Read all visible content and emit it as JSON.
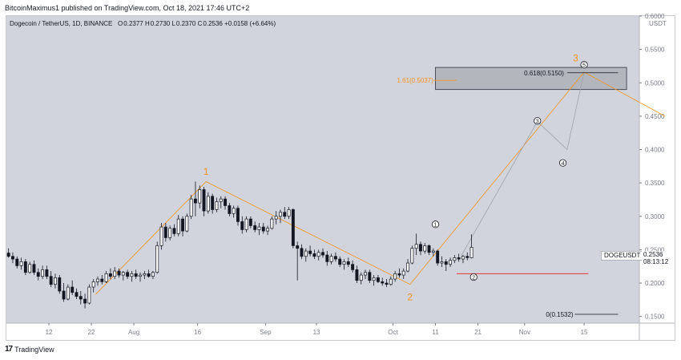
{
  "header": {
    "published_text": "BitcoinMaximus1 published on TradingView.com, Oct 18, 2021 17:46 UTC+2"
  },
  "legend": {
    "symbol_text": "Dogecoin / TetherUS, 1D, BINANCE",
    "o_label": "O",
    "o_value": "0.2377",
    "h_label": "H",
    "h_value": "0.2730",
    "l_label": "L",
    "l_value": "0.2370",
    "c_label": "C",
    "c_value": "0.2536",
    "change": "+0.0158 (+6.64%)"
  },
  "badges": {
    "symbol": "DOGEUSDT",
    "last_price": "0.2536",
    "countdown": "08:13:12"
  },
  "footer": {
    "brand": "TradingView",
    "logo_text": "17"
  },
  "colors": {
    "plot_bg": "#d1d4dc",
    "candle": "#131722",
    "orange": "#f7931a",
    "grey_path": "#9ea2ab",
    "red_line": "#e53935",
    "box_fill": "#a9acb3"
  },
  "chart_data": {
    "type": "candlestick",
    "title": "Dogecoin / TetherUS, 1D, BINANCE",
    "ylabel": "USDT",
    "ylim": [
      0.14,
      0.6
    ],
    "y_ticks": [
      "0.6000",
      "0.5500",
      "0.5000",
      "0.4500",
      "0.4000",
      "0.3500",
      "0.3000",
      "0.2500",
      "0.2000",
      "0.1500"
    ],
    "y_tick_values": [
      0.6,
      0.55,
      0.5,
      0.45,
      0.4,
      0.35,
      0.3,
      0.25,
      0.2,
      0.15
    ],
    "x_range_days": [
      0,
      149
    ],
    "x_ticks": [
      {
        "label": "12",
        "day": 10
      },
      {
        "label": "22",
        "day": 20
      },
      {
        "label": "Aug",
        "day": 30
      },
      {
        "label": "16",
        "day": 45
      },
      {
        "label": "Sep",
        "day": 61
      },
      {
        "label": "13",
        "day": 73
      },
      {
        "label": "Oct",
        "day": 91
      },
      {
        "label": "11",
        "day": 101
      },
      {
        "label": "21",
        "day": 111
      },
      {
        "label": "Nov",
        "day": 122
      },
      {
        "label": "15",
        "day": 136
      }
    ],
    "ohlc": [
      [
        0.245,
        0.252,
        0.238,
        0.24
      ],
      [
        0.24,
        0.246,
        0.23,
        0.236
      ],
      [
        0.236,
        0.24,
        0.222,
        0.226
      ],
      [
        0.226,
        0.238,
        0.22,
        0.232
      ],
      [
        0.232,
        0.236,
        0.212,
        0.216
      ],
      [
        0.216,
        0.232,
        0.214,
        0.228
      ],
      [
        0.228,
        0.234,
        0.212,
        0.216
      ],
      [
        0.216,
        0.222,
        0.204,
        0.21
      ],
      [
        0.21,
        0.226,
        0.206,
        0.22
      ],
      [
        0.22,
        0.226,
        0.206,
        0.21
      ],
      [
        0.21,
        0.218,
        0.194,
        0.198
      ],
      [
        0.198,
        0.214,
        0.192,
        0.208
      ],
      [
        0.208,
        0.212,
        0.184,
        0.188
      ],
      [
        0.188,
        0.2,
        0.172,
        0.176
      ],
      [
        0.176,
        0.198,
        0.174,
        0.194
      ],
      [
        0.194,
        0.204,
        0.182,
        0.186
      ],
      [
        0.186,
        0.192,
        0.176,
        0.18
      ],
      [
        0.18,
        0.188,
        0.168,
        0.176
      ],
      [
        0.176,
        0.184,
        0.162,
        0.17
      ],
      [
        0.17,
        0.198,
        0.168,
        0.194
      ],
      [
        0.194,
        0.206,
        0.186,
        0.202
      ],
      [
        0.202,
        0.21,
        0.196,
        0.206
      ],
      [
        0.206,
        0.212,
        0.198,
        0.202
      ],
      [
        0.202,
        0.218,
        0.2,
        0.214
      ],
      [
        0.214,
        0.222,
        0.206,
        0.21
      ],
      [
        0.21,
        0.224,
        0.206,
        0.218
      ],
      [
        0.218,
        0.222,
        0.208,
        0.212
      ],
      [
        0.212,
        0.218,
        0.204,
        0.216
      ],
      [
        0.216,
        0.22,
        0.206,
        0.21
      ],
      [
        0.21,
        0.218,
        0.202,
        0.214
      ],
      [
        0.214,
        0.22,
        0.206,
        0.21
      ],
      [
        0.21,
        0.216,
        0.202,
        0.212
      ],
      [
        0.212,
        0.218,
        0.206,
        0.214
      ],
      [
        0.214,
        0.22,
        0.208,
        0.21
      ],
      [
        0.21,
        0.218,
        0.206,
        0.216
      ],
      [
        0.216,
        0.262,
        0.214,
        0.256
      ],
      [
        0.256,
        0.29,
        0.25,
        0.284
      ],
      [
        0.284,
        0.29,
        0.262,
        0.268
      ],
      [
        0.268,
        0.286,
        0.264,
        0.282
      ],
      [
        0.282,
        0.288,
        0.27,
        0.274
      ],
      [
        0.274,
        0.302,
        0.27,
        0.296
      ],
      [
        0.296,
        0.3,
        0.27,
        0.278
      ],
      [
        0.278,
        0.304,
        0.276,
        0.3
      ],
      [
        0.3,
        0.332,
        0.296,
        0.326
      ],
      [
        0.326,
        0.352,
        0.3,
        0.32
      ],
      [
        0.32,
        0.346,
        0.312,
        0.34
      ],
      [
        0.34,
        0.344,
        0.3,
        0.308
      ],
      [
        0.308,
        0.336,
        0.304,
        0.33
      ],
      [
        0.33,
        0.334,
        0.304,
        0.31
      ],
      [
        0.31,
        0.328,
        0.306,
        0.322
      ],
      [
        0.322,
        0.33,
        0.312,
        0.326
      ],
      [
        0.326,
        0.33,
        0.31,
        0.316
      ],
      [
        0.316,
        0.32,
        0.3,
        0.304
      ],
      [
        0.304,
        0.316,
        0.298,
        0.312
      ],
      [
        0.312,
        0.316,
        0.286,
        0.292
      ],
      [
        0.292,
        0.3,
        0.274,
        0.28
      ],
      [
        0.28,
        0.3,
        0.276,
        0.296
      ],
      [
        0.296,
        0.3,
        0.282,
        0.286
      ],
      [
        0.286,
        0.292,
        0.276,
        0.28
      ],
      [
        0.28,
        0.29,
        0.272,
        0.284
      ],
      [
        0.284,
        0.29,
        0.274,
        0.278
      ],
      [
        0.278,
        0.286,
        0.272,
        0.282
      ],
      [
        0.282,
        0.3,
        0.28,
        0.296
      ],
      [
        0.296,
        0.308,
        0.288,
        0.3
      ],
      [
        0.3,
        0.31,
        0.29,
        0.306
      ],
      [
        0.306,
        0.314,
        0.296,
        0.3
      ],
      [
        0.3,
        0.314,
        0.296,
        0.31
      ],
      [
        0.31,
        0.312,
        0.252,
        0.256
      ],
      [
        0.256,
        0.262,
        0.204,
        0.252
      ],
      [
        0.252,
        0.258,
        0.236,
        0.24
      ],
      [
        0.24,
        0.252,
        0.232,
        0.248
      ],
      [
        0.248,
        0.256,
        0.24,
        0.244
      ],
      [
        0.244,
        0.25,
        0.236,
        0.24
      ],
      [
        0.24,
        0.25,
        0.234,
        0.246
      ],
      [
        0.246,
        0.252,
        0.238,
        0.242
      ],
      [
        0.242,
        0.248,
        0.226,
        0.232
      ],
      [
        0.232,
        0.244,
        0.228,
        0.24
      ],
      [
        0.24,
        0.246,
        0.232,
        0.236
      ],
      [
        0.236,
        0.24,
        0.224,
        0.228
      ],
      [
        0.228,
        0.236,
        0.22,
        0.232
      ],
      [
        0.232,
        0.238,
        0.224,
        0.228
      ],
      [
        0.228,
        0.234,
        0.216,
        0.22
      ],
      [
        0.22,
        0.226,
        0.2,
        0.204
      ],
      [
        0.204,
        0.216,
        0.198,
        0.212
      ],
      [
        0.212,
        0.22,
        0.206,
        0.216
      ],
      [
        0.216,
        0.22,
        0.2,
        0.204
      ],
      [
        0.204,
        0.212,
        0.196,
        0.208
      ],
      [
        0.208,
        0.212,
        0.2,
        0.202
      ],
      [
        0.202,
        0.208,
        0.196,
        0.2
      ],
      [
        0.2,
        0.206,
        0.194,
        0.198
      ],
      [
        0.198,
        0.21,
        0.196,
        0.206
      ],
      [
        0.206,
        0.218,
        0.202,
        0.214
      ],
      [
        0.214,
        0.222,
        0.208,
        0.212
      ],
      [
        0.212,
        0.222,
        0.206,
        0.218
      ],
      [
        0.218,
        0.236,
        0.216,
        0.23
      ],
      [
        0.23,
        0.256,
        0.228,
        0.252
      ],
      [
        0.252,
        0.274,
        0.242,
        0.258
      ],
      [
        0.258,
        0.262,
        0.242,
        0.248
      ],
      [
        0.248,
        0.26,
        0.244,
        0.256
      ],
      [
        0.256,
        0.258,
        0.242,
        0.246
      ],
      [
        0.246,
        0.252,
        0.24,
        0.248
      ],
      [
        0.248,
        0.25,
        0.226,
        0.23
      ],
      [
        0.23,
        0.24,
        0.224,
        0.232
      ],
      [
        0.232,
        0.236,
        0.218,
        0.228
      ],
      [
        0.228,
        0.238,
        0.224,
        0.234
      ],
      [
        0.234,
        0.242,
        0.23,
        0.238
      ],
      [
        0.238,
        0.244,
        0.232,
        0.236
      ],
      [
        0.236,
        0.242,
        0.23,
        0.24
      ],
      [
        0.24,
        0.246,
        0.234,
        0.238
      ],
      [
        0.2377,
        0.273,
        0.237,
        0.2536
      ]
    ],
    "wave_labels": [
      {
        "text": "1",
        "day": 47,
        "price": 0.362,
        "style": "orange"
      },
      {
        "text": "2",
        "day": 95,
        "price": 0.174,
        "style": "orange"
      },
      {
        "text": "3",
        "day": 134,
        "price": 0.532,
        "style": "orange"
      },
      {
        "text": "1",
        "day": 101,
        "price": 0.288,
        "style": "circled"
      },
      {
        "text": "2",
        "day": 110,
        "price": 0.209,
        "style": "circled"
      },
      {
        "text": "3",
        "day": 125,
        "price": 0.443,
        "style": "circled"
      },
      {
        "text": "4",
        "day": 131,
        "price": 0.38,
        "style": "circled"
      },
      {
        "text": "5",
        "day": 136,
        "price": 0.527,
        "style": "circled"
      }
    ],
    "projection_path": [
      {
        "day": 107,
        "price": 0.24
      },
      {
        "day": 125,
        "price": 0.442
      },
      {
        "day": 132,
        "price": 0.4
      },
      {
        "day": 136,
        "price": 0.516
      }
    ],
    "orange_waves": [
      {
        "day": 21,
        "price": 0.183
      },
      {
        "day": 47,
        "price": 0.352
      },
      {
        "day": 95,
        "price": 0.198
      },
      {
        "day": 136,
        "price": 0.516
      },
      {
        "day": 155,
        "price": 0.45
      }
    ],
    "target_box": {
      "day_start": 101,
      "day_end": 146,
      "price_top": 0.523,
      "price_bottom": 0.49
    },
    "fib_annotations": [
      {
        "text": "1.61(0.5037)",
        "day": 101,
        "price": 0.5037,
        "style": "orange",
        "line_to_day": 106
      },
      {
        "text": "0.618(0.5150)",
        "day": 123,
        "price": 0.515,
        "style": "dark",
        "line_to_day": 144
      }
    ],
    "zero_level": {
      "text": "0(0.1532)",
      "day": 127,
      "price": 0.1532,
      "line_to_day": 144
    },
    "support_line": {
      "day_start": 106,
      "day_end": 137,
      "price": 0.214
    }
  }
}
